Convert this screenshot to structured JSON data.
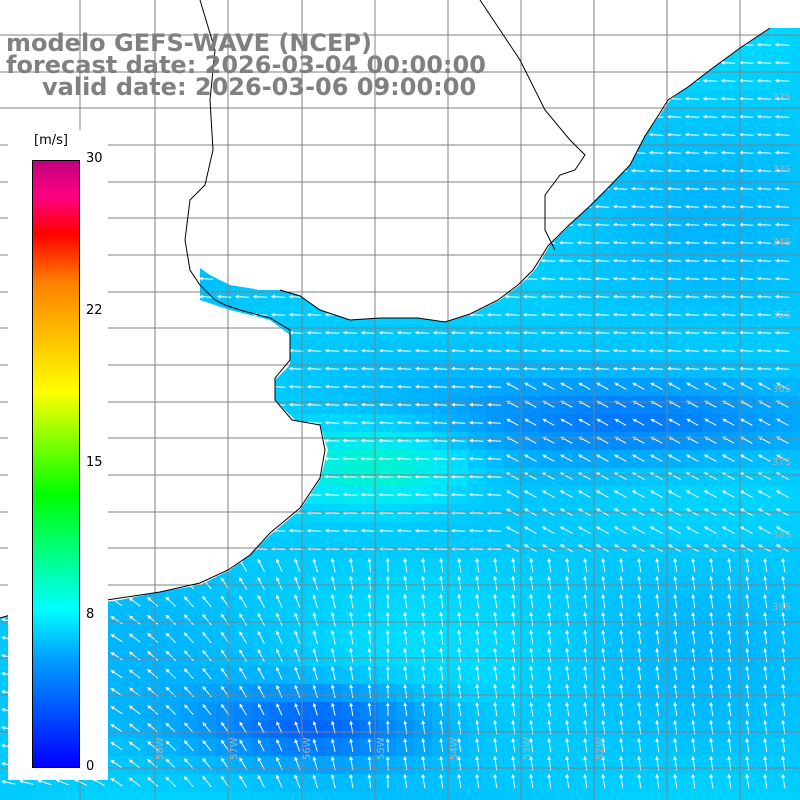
{
  "title": {
    "line1": "modelo GEFS-WAVE (NCEP)",
    "line2": "forecast date: 2026-03-04 00:00:00",
    "line3": "valid date: 2026-03-06 09:00:00"
  },
  "colorbar": {
    "unit": "[m/s]",
    "min": 0,
    "max": 30,
    "ticks": [
      "30",
      "22",
      "15",
      "8",
      "0"
    ],
    "tick_values": [
      30,
      22,
      15,
      8,
      0
    ],
    "colors": [
      "#0000ff",
      "#00a0ff",
      "#00ffff",
      "#00ff00",
      "#ffff00",
      "#ff8000",
      "#ff0000",
      "#c0007f"
    ]
  },
  "grid": {
    "lat_labels": [
      "32S",
      "33S",
      "34S",
      "35S",
      "36S",
      "37S",
      "38S",
      "39S"
    ],
    "lon_labels": [
      "60W",
      "59W",
      "58W",
      "57W",
      "56W",
      "55W",
      "54W",
      "53W",
      "52W"
    ]
  },
  "map": {
    "land_color": "#ffffff",
    "coast_color": "#000000",
    "grid_color": "#808080",
    "arrow_color": "#ffffff"
  }
}
